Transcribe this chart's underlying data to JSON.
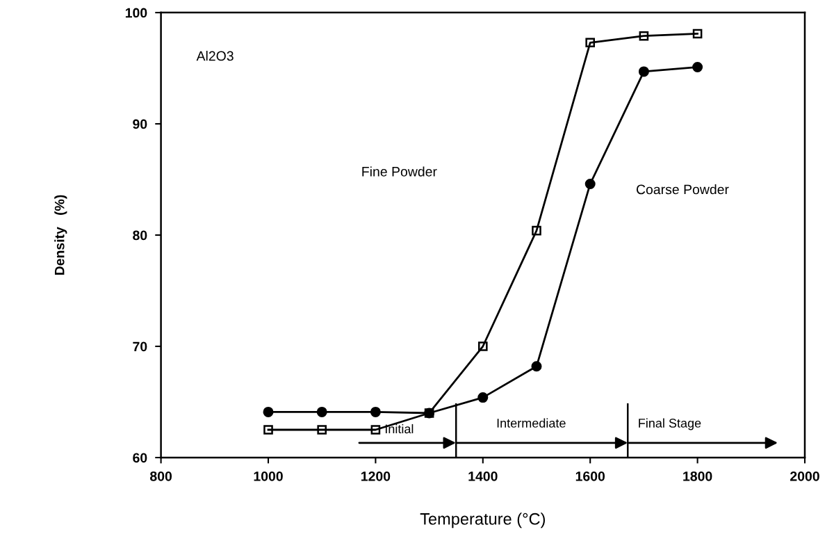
{
  "chart_data": {
    "type": "line",
    "xlabel": "Temperature (°C)",
    "ylabel": "Density   (%)",
    "x": [
      1000,
      1100,
      1200,
      1300,
      1400,
      1500,
      1600,
      1700,
      1800
    ],
    "series": [
      {
        "color": "#000000",
        "marker": "square",
        "values": [
          62.5,
          62.5,
          62.5,
          64.0,
          70.0,
          80.4,
          97.3,
          97.9,
          98.1
        ]
      },
      {
        "color": "#000000",
        "marker": "circle",
        "values": [
          64.1,
          64.1,
          64.1,
          64.0,
          65.4,
          68.2,
          84.6,
          94.7,
          95.1
        ]
      }
    ],
    "xlim": [
      800,
      2000
    ],
    "xticks": [
      800,
      1000,
      1200,
      1400,
      1600,
      1800,
      2000
    ],
    "ylim": [
      60,
      100
    ],
    "yticks": [
      60,
      70,
      80,
      90,
      100
    ],
    "grid": false,
    "legend": false,
    "line_style": "solid",
    "ref_lines": [
      {
        "axis": "x",
        "value": 1350,
        "color": "#000000"
      },
      {
        "axis": "x",
        "value": 1670,
        "color": "#000000"
      }
    ],
    "annotations": [
      "Al2O3",
      "Fine Powder",
      "Coarse Powder",
      "Initial",
      "Intermediate",
      "Final Stage"
    ]
  }
}
